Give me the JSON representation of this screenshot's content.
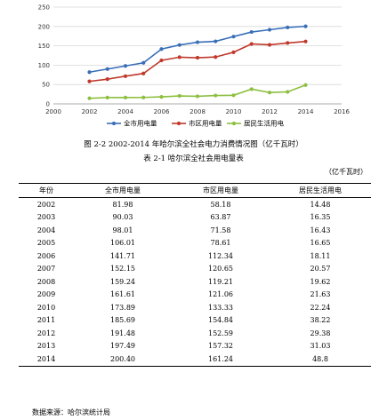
{
  "chart_data": {
    "type": "line",
    "x": [
      2002,
      2003,
      2004,
      2005,
      2006,
      2007,
      2008,
      2009,
      2010,
      2011,
      2012,
      2013,
      2014
    ],
    "series": [
      {
        "name": "全市用电量",
        "color": "#3a6fb8",
        "values": [
          81.98,
          90.03,
          98.01,
          106.01,
          141.71,
          152.15,
          159.24,
          161.61,
          173.89,
          185.69,
          191.48,
          197.49,
          200.4
        ]
      },
      {
        "name": "市区用电量",
        "color": "#c0392b",
        "values": [
          58.18,
          63.87,
          71.58,
          78.61,
          112.34,
          120.65,
          119.21,
          121.06,
          133.33,
          154.84,
          152.59,
          157.32,
          161.24
        ]
      },
      {
        "name": "居民生活用电",
        "color": "#8cbf3f",
        "values": [
          14.48,
          16.35,
          16.43,
          16.65,
          18.11,
          20.57,
          19.62,
          21.63,
          22.24,
          38.22,
          29.38,
          31.03,
          48.8
        ]
      }
    ],
    "xlim": [
      2000,
      2016
    ],
    "ylim": [
      0,
      250
    ],
    "xticks": [
      "2000",
      "2002",
      "2004",
      "2006",
      "2008",
      "2010",
      "2012",
      "2014",
      "2016"
    ],
    "yticks": [
      "0",
      "50",
      "100",
      "150",
      "200",
      "250"
    ],
    "grid": true,
    "legend": "bottom"
  },
  "figure_caption": "图 2-2 2002-2014 年哈尔滨全社会电力消费情况图（亿千瓦时）",
  "table_caption": "表 2-1  哈尔滨全社会用电量表",
  "unit_label": "（亿千瓦时）",
  "table": {
    "headers": [
      "年份",
      "全市用电量",
      "市区用电量",
      "居民生活用电"
    ],
    "rows": [
      [
        "2002",
        "81.98",
        "58.18",
        "14.48"
      ],
      [
        "2003",
        "90.03",
        "63.87",
        "16.35"
      ],
      [
        "2004",
        "98.01",
        "71.58",
        "16.43"
      ],
      [
        "2005",
        "106.01",
        "78.61",
        "16.65"
      ],
      [
        "2006",
        "141.71",
        "112.34",
        "18.11"
      ],
      [
        "2007",
        "152.15",
        "120.65",
        "20.57"
      ],
      [
        "2008",
        "159.24",
        "119.21",
        "19.62"
      ],
      [
        "2009",
        "161.61",
        "121.06",
        "21.63"
      ],
      [
        "2010",
        "173.89",
        "133.33",
        "22.24"
      ],
      [
        "2011",
        "185.69",
        "154.84",
        "38.22"
      ],
      [
        "2012",
        "191.48",
        "152.59",
        "29.38"
      ],
      [
        "2013",
        "197.49",
        "157.32",
        "31.03"
      ],
      [
        "2014",
        "200.40",
        "161.24",
        "48.8"
      ]
    ]
  },
  "source_note": "数据来源：哈尔滨统计局"
}
